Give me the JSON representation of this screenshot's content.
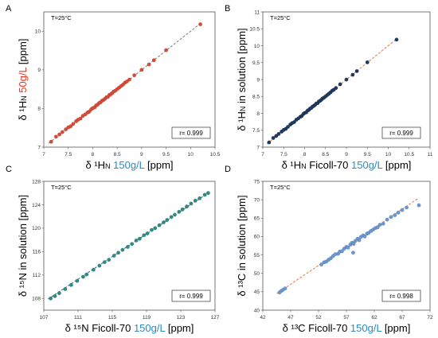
{
  "chart_data": [
    {
      "panel": "A",
      "type": "scatter",
      "annotation": "T=25°C",
      "r_label": "r= 0.999",
      "xlabel": {
        "parts": [
          {
            "text": "δ ¹H",
            "color": "#000000"
          },
          {
            "text": "N",
            "color": "#000000",
            "small": true
          },
          {
            "text": " 150g/L",
            "color": "#2b8cc4"
          },
          {
            "text": " [ppm]",
            "color": "#000000"
          }
        ]
      },
      "ylabel": {
        "parts": [
          {
            "text": "δ ¹H",
            "color": "#000000"
          },
          {
            "text": "N",
            "color": "#000000",
            "small": true
          },
          {
            "text": " 50g/L",
            "color": "#e03a2a"
          },
          {
            "text": " [ppm]",
            "color": "#000000"
          }
        ]
      },
      "xlim": [
        7,
        10.5
      ],
      "ylim": [
        7,
        10.5
      ],
      "xticks": [
        "7",
        "7.5",
        "8",
        "8.5",
        "9",
        "9.5",
        "10",
        "10.5"
      ],
      "yticks": [
        "7",
        "8",
        "9",
        "10"
      ],
      "ytick_values": [
        7,
        8,
        9,
        10
      ],
      "xtick_values": [
        7,
        7.5,
        8,
        8.5,
        9,
        9.5,
        10,
        10.5
      ],
      "color": "#d94a38",
      "fit_color": "#777777",
      "fit": [
        [
          7.1,
          7.1
        ],
        [
          10.2,
          10.2
        ]
      ],
      "points": [
        [
          7.15,
          7.14
        ],
        [
          7.25,
          7.27
        ],
        [
          7.32,
          7.33
        ],
        [
          7.38,
          7.39
        ],
        [
          7.45,
          7.46
        ],
        [
          7.5,
          7.51
        ],
        [
          7.55,
          7.54
        ],
        [
          7.6,
          7.6
        ],
        [
          7.66,
          7.67
        ],
        [
          7.7,
          7.71
        ],
        [
          7.75,
          7.74
        ],
        [
          7.8,
          7.81
        ],
        [
          7.85,
          7.85
        ],
        [
          7.9,
          7.9
        ],
        [
          7.93,
          7.92
        ],
        [
          7.97,
          7.98
        ],
        [
          8.0,
          8.01
        ],
        [
          8.04,
          8.03
        ],
        [
          8.07,
          8.08
        ],
        [
          8.1,
          8.1
        ],
        [
          8.13,
          8.14
        ],
        [
          8.16,
          8.16
        ],
        [
          8.19,
          8.2
        ],
        [
          8.22,
          8.22
        ],
        [
          8.25,
          8.25
        ],
        [
          8.28,
          8.29
        ],
        [
          8.31,
          8.3
        ],
        [
          8.34,
          8.35
        ],
        [
          8.37,
          8.37
        ],
        [
          8.4,
          8.4
        ],
        [
          8.43,
          8.44
        ],
        [
          8.46,
          8.46
        ],
        [
          8.5,
          8.5
        ],
        [
          8.54,
          8.54
        ],
        [
          8.58,
          8.58
        ],
        [
          8.62,
          8.62
        ],
        [
          8.66,
          8.67
        ],
        [
          8.7,
          8.7
        ],
        [
          8.75,
          8.75
        ],
        [
          8.85,
          8.86
        ],
        [
          9.0,
          9.0
        ],
        [
          9.15,
          9.14
        ],
        [
          9.25,
          9.25
        ],
        [
          9.5,
          9.51
        ],
        [
          10.2,
          10.18
        ]
      ]
    },
    {
      "panel": "B",
      "type": "scatter",
      "annotation": "T=25°C",
      "r_label": "r= 0.999",
      "xlabel": {
        "parts": [
          {
            "text": "δ ¹H",
            "color": "#000000"
          },
          {
            "text": "N",
            "color": "#000000",
            "small": true
          },
          {
            "text": " Ficoll-70 ",
            "color": "#000000"
          },
          {
            "text": "150g/L",
            "color": "#2b8cc4"
          },
          {
            "text": " [ppm]",
            "color": "#000000"
          }
        ]
      },
      "ylabel": {
        "parts": [
          {
            "text": "δ ¹H",
            "color": "#000000"
          },
          {
            "text": "N",
            "color": "#000000",
            "small": true
          },
          {
            "text": " in solution  [ppm]",
            "color": "#000000"
          }
        ]
      },
      "xlim": [
        7,
        11
      ],
      "ylim": [
        7,
        11
      ],
      "xticks": [
        "7",
        "7.5",
        "8",
        "8.5",
        "9",
        "9.5",
        "10",
        "10.5",
        "11"
      ],
      "xtick_values": [
        7,
        7.5,
        8,
        8.5,
        9,
        9.5,
        10,
        10.5,
        11
      ],
      "yticks": [
        "7",
        "7.5",
        "8",
        "8.5",
        "9",
        "9.5",
        "10",
        "10.5",
        "11"
      ],
      "ytick_values": [
        7,
        7.5,
        8,
        8.5,
        9,
        9.5,
        10,
        10.5,
        11
      ],
      "color": "#1f3a5f",
      "fit_color": "#e8743b",
      "fit": [
        [
          7.1,
          7.1
        ],
        [
          10.2,
          10.2
        ]
      ],
      "points": [
        [
          7.15,
          7.14
        ],
        [
          7.25,
          7.27
        ],
        [
          7.32,
          7.33
        ],
        [
          7.38,
          7.39
        ],
        [
          7.45,
          7.46
        ],
        [
          7.5,
          7.51
        ],
        [
          7.55,
          7.54
        ],
        [
          7.6,
          7.6
        ],
        [
          7.66,
          7.67
        ],
        [
          7.7,
          7.71
        ],
        [
          7.75,
          7.74
        ],
        [
          7.8,
          7.81
        ],
        [
          7.85,
          7.85
        ],
        [
          7.9,
          7.9
        ],
        [
          7.93,
          7.92
        ],
        [
          7.97,
          7.98
        ],
        [
          8.0,
          8.01
        ],
        [
          8.04,
          8.03
        ],
        [
          8.07,
          8.08
        ],
        [
          8.1,
          8.1
        ],
        [
          8.13,
          8.14
        ],
        [
          8.16,
          8.16
        ],
        [
          8.19,
          8.2
        ],
        [
          8.22,
          8.22
        ],
        [
          8.25,
          8.25
        ],
        [
          8.28,
          8.29
        ],
        [
          8.31,
          8.3
        ],
        [
          8.34,
          8.35
        ],
        [
          8.37,
          8.37
        ],
        [
          8.4,
          8.4
        ],
        [
          8.43,
          8.44
        ],
        [
          8.46,
          8.46
        ],
        [
          8.5,
          8.5
        ],
        [
          8.54,
          8.54
        ],
        [
          8.58,
          8.58
        ],
        [
          8.62,
          8.62
        ],
        [
          8.66,
          8.67
        ],
        [
          8.7,
          8.7
        ],
        [
          8.75,
          8.75
        ],
        [
          8.85,
          8.86
        ],
        [
          9.0,
          9.0
        ],
        [
          9.15,
          9.14
        ],
        [
          9.25,
          9.25
        ],
        [
          9.5,
          9.51
        ],
        [
          10.2,
          10.18
        ]
      ]
    },
    {
      "panel": "C",
      "type": "scatter",
      "annotation": "T=25°C",
      "r_label": "r= 0.999",
      "xlabel": {
        "parts": [
          {
            "text": "δ ¹⁵N Ficoll-70 ",
            "color": "#000000"
          },
          {
            "text": "150g/L",
            "color": "#2b8cc4"
          },
          {
            "text": " [ppm]",
            "color": "#000000"
          }
        ]
      },
      "ylabel": {
        "parts": [
          {
            "text": "δ ¹⁵N in solution  [ppm]",
            "color": "#000000"
          }
        ]
      },
      "xlim": [
        107,
        127
      ],
      "ylim": [
        106,
        128
      ],
      "xticks": [
        "107",
        "111",
        "115",
        "119",
        "123",
        "127"
      ],
      "xtick_values": [
        107,
        111,
        115,
        119,
        123,
        127
      ],
      "yticks": [
        "108",
        "112",
        "116",
        "120",
        "124",
        "128"
      ],
      "ytick_values": [
        108,
        112,
        116,
        120,
        124,
        128
      ],
      "color": "#2f8c82",
      "fit_color": "#2b5a8f",
      "fit": [
        [
          107.5,
          107.9
        ],
        [
          126.2,
          126.0
        ]
      ],
      "points": [
        [
          107.8,
          108.0
        ],
        [
          108.3,
          108.4
        ],
        [
          108.8,
          108.9
        ],
        [
          109.5,
          109.6
        ],
        [
          110.2,
          110.3
        ],
        [
          110.9,
          111.0
        ],
        [
          111.6,
          111.7
        ],
        [
          112.0,
          112.1
        ],
        [
          112.8,
          112.9
        ],
        [
          113.5,
          113.6
        ],
        [
          114.1,
          114.2
        ],
        [
          114.6,
          114.6
        ],
        [
          115.2,
          115.3
        ],
        [
          115.7,
          115.8
        ],
        [
          116.2,
          116.3
        ],
        [
          116.8,
          116.8
        ],
        [
          117.3,
          117.3
        ],
        [
          117.8,
          117.9
        ],
        [
          118.2,
          118.2
        ],
        [
          118.7,
          118.8
        ],
        [
          119.1,
          119.1
        ],
        [
          119.6,
          119.7
        ],
        [
          120.0,
          120.0
        ],
        [
          120.5,
          120.5
        ],
        [
          121.0,
          121.0
        ],
        [
          121.4,
          121.4
        ],
        [
          121.9,
          121.9
        ],
        [
          122.3,
          122.3
        ],
        [
          122.8,
          122.8
        ],
        [
          123.2,
          123.2
        ],
        [
          123.7,
          123.7
        ],
        [
          124.2,
          124.2
        ],
        [
          124.7,
          124.7
        ],
        [
          125.2,
          125.1
        ],
        [
          125.8,
          125.7
        ],
        [
          126.2,
          126.0
        ]
      ]
    },
    {
      "panel": "D",
      "type": "scatter",
      "annotation": "T=25°C",
      "r_label": "r= 0.998",
      "xlabel": {
        "parts": [
          {
            "text": "δ ¹³C Ficoll-70 ",
            "color": "#000000"
          },
          {
            "text": "150g/L",
            "color": "#2b8cc4"
          },
          {
            "text": " [ppm]",
            "color": "#000000"
          }
        ]
      },
      "ylabel": {
        "parts": [
          {
            "text": "δ ¹³C in solution  [ppm]",
            "color": "#000000"
          }
        ]
      },
      "xlim": [
        42,
        72
      ],
      "ylim": [
        40,
        75
      ],
      "xticks": [
        "42",
        "47",
        "52",
        "57",
        "62",
        "67",
        "72"
      ],
      "xtick_values": [
        42,
        47,
        52,
        57,
        62,
        67,
        72
      ],
      "yticks": [
        "40",
        "45",
        "50",
        "55",
        "60",
        "65",
        "70",
        "75"
      ],
      "ytick_values": [
        40,
        45,
        50,
        55,
        60,
        65,
        70,
        75
      ],
      "color": "#6a97cf",
      "fit_color": "#e8743b",
      "fit": [
        [
          44.5,
          44.5
        ],
        [
          70,
          70.5
        ]
      ],
      "points": [
        [
          45.0,
          44.8
        ],
        [
          45.3,
          45.2
        ],
        [
          45.6,
          45.5
        ],
        [
          46.0,
          45.9
        ],
        [
          52.5,
          52.4
        ],
        [
          53.0,
          53.0
        ],
        [
          53.4,
          53.2
        ],
        [
          53.8,
          53.7
        ],
        [
          54.2,
          54.1
        ],
        [
          54.6,
          54.7
        ],
        [
          55.0,
          55.2
        ],
        [
          55.5,
          55.3
        ],
        [
          55.8,
          55.9
        ],
        [
          56.2,
          56.0
        ],
        [
          56.6,
          56.7
        ],
        [
          57.0,
          57.2
        ],
        [
          57.3,
          57.0
        ],
        [
          57.7,
          57.8
        ],
        [
          58.0,
          58.3
        ],
        [
          58.3,
          58.0
        ],
        [
          58.6,
          58.8
        ],
        [
          59.0,
          59.4
        ],
        [
          59.3,
          59.0
        ],
        [
          59.6,
          59.9
        ],
        [
          60.0,
          60.3
        ],
        [
          60.3,
          60.0
        ],
        [
          60.7,
          60.8
        ],
        [
          61.0,
          61.0
        ],
        [
          61.4,
          61.5
        ],
        [
          61.8,
          61.9
        ],
        [
          58.2,
          55.6
        ],
        [
          62.2,
          62.3
        ],
        [
          62.6,
          62.5
        ],
        [
          63.0,
          63.2
        ],
        [
          63.6,
          63.5
        ],
        [
          64.3,
          64.6
        ],
        [
          65.0,
          65.3
        ],
        [
          65.7,
          65.8
        ],
        [
          66.3,
          66.5
        ],
        [
          67.0,
          67.2
        ],
        [
          67.8,
          67.9
        ],
        [
          70.0,
          68.5
        ]
      ]
    }
  ]
}
